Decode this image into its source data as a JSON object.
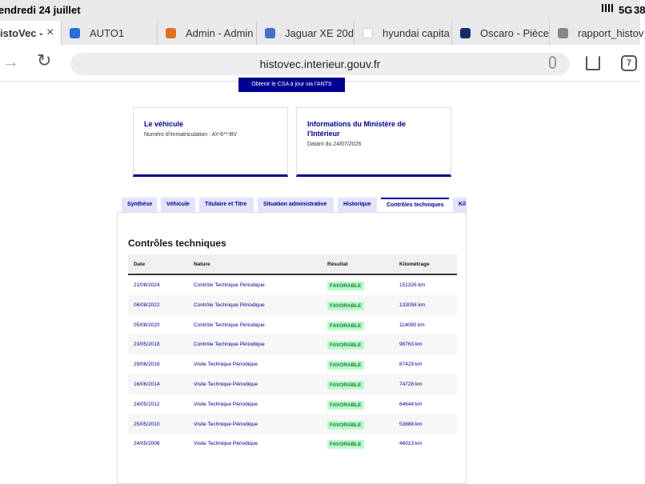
{
  "status": {
    "date": "endredi 24 juillet",
    "network": "5G",
    "battery": "38"
  },
  "tabs": [
    "istoVec -",
    "AUTO1",
    "Admin - Admin",
    "Jaguar XE 20d",
    "hyundai capita",
    "Oscaro - Pièce",
    "rapport_histov"
  ],
  "address": "histovec.interieur.gouv.fr",
  "tab_count": "7",
  "page": {
    "csa_button": "Obtenir le CSA à jour via l'ANTS",
    "cards": [
      {
        "title": "Le véhicule",
        "text": "Numéro d'immatriculation : AY-6**-BV"
      },
      {
        "title": "Informations du Ministère de l'Intérieur",
        "text": "Datant du 24/07/2026"
      }
    ],
    "tabs": [
      "Synthèse",
      "Véhicule",
      "Titulaire et Titre",
      "Situation administrative",
      "Historique",
      "Contrôles techniques",
      "Kil"
    ],
    "section_title": "Contrôles techniques",
    "table": {
      "headers": [
        "Date",
        "Nature",
        "Résultat",
        "Kilométrage"
      ],
      "rows": [
        [
          "21/08/2024",
          "Contrôle Technique Périodique",
          "FAVORABLE",
          "151326 km"
        ],
        [
          "06/08/2022",
          "Contrôle Technique Périodique",
          "FAVORABLE",
          "133058 km"
        ],
        [
          "05/08/2020",
          "Contrôle Technique Périodique",
          "FAVORABLE",
          "114090 km"
        ],
        [
          "23/05/2018",
          "Contrôle Technique Périodique",
          "FAVORABLE",
          "98763 km"
        ],
        [
          "29/06/2016",
          "Visite Technique Périodique",
          "FAVORABLE",
          "87429 km"
        ],
        [
          "16/06/2014",
          "Visite Technique Périodique",
          "FAVORABLE",
          "74728 km"
        ],
        [
          "24/05/2012",
          "Visite Technique Périodique",
          "FAVORABLE",
          "64644 km"
        ],
        [
          "25/05/2010",
          "Visite Technique Périodique",
          "FAVORABLE",
          "53888 km"
        ],
        [
          "24/05/2008",
          "Visite Technique Périodique",
          "FAVORABLE",
          "46013 km"
        ]
      ]
    }
  }
}
